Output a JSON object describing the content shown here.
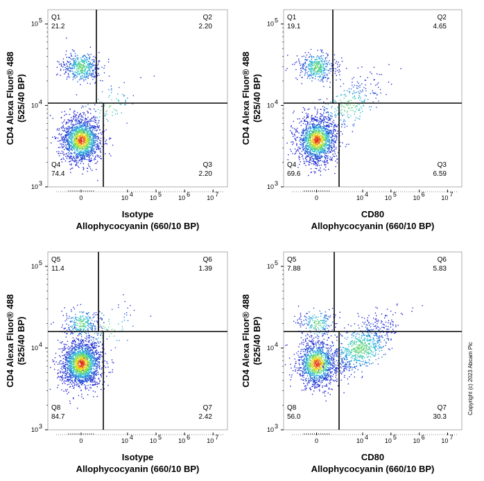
{
  "copyright": "Copyright (c) 2023 Abcam Plc",
  "colors": {
    "density_low": "#1f1fd0",
    "density_mid": "#30d0c0",
    "density_high": "#f0e020",
    "density_peak": "#e02010",
    "gate": "#000000"
  },
  "chart_data": [
    {
      "type": "scatter",
      "title": "",
      "xlabel_line1": "Isotype",
      "xlabel_line2": "Allophycocyanin (660/10 BP)",
      "ylabel_line1": "CD4 Alexa Fluor® 488",
      "ylabel_line2": "(525/40 BP)",
      "x_scale": "biexponential",
      "y_scale": "log",
      "ylim": [
        1000,
        150000
      ],
      "x_ticks": [
        {
          "base": "0",
          "exp": ""
        },
        {
          "base": "10",
          "exp": "4"
        },
        {
          "base": "10",
          "exp": "5"
        },
        {
          "base": "10",
          "exp": "6"
        },
        {
          "base": "10",
          "exp": "7"
        }
      ],
      "y_ticks": [
        {
          "base": "10",
          "exp": "3"
        },
        {
          "base": "10",
          "exp": "4"
        },
        {
          "base": "10",
          "exp": "5"
        }
      ],
      "quadrants": [
        {
          "name": "Q1",
          "value": "21.2"
        },
        {
          "name": "Q2",
          "value": "2.20"
        },
        {
          "name": "Q3",
          "value": "2.20"
        },
        {
          "name": "Q4",
          "value": "74.4"
        }
      ],
      "populations": [
        {
          "x": 0,
          "y": 30000,
          "fraction": 0.21
        },
        {
          "x": 0,
          "y": 3800,
          "fraction": 0.72
        },
        {
          "x": 2000,
          "y": 10000,
          "fraction": 0.04
        }
      ]
    },
    {
      "type": "scatter",
      "title": "",
      "xlabel_line1": "CD80",
      "xlabel_line2": "Allophycocyanin (660/10 BP)",
      "ylabel_line1": "CD4 Alexa Fluor® 488",
      "ylabel_line2": "(525/40 BP)",
      "x_scale": "biexponential",
      "y_scale": "log",
      "ylim": [
        1000,
        150000
      ],
      "x_ticks": [
        {
          "base": "0",
          "exp": ""
        },
        {
          "base": "10",
          "exp": "4"
        },
        {
          "base": "10",
          "exp": "5"
        },
        {
          "base": "10",
          "exp": "6"
        },
        {
          "base": "10",
          "exp": "7"
        }
      ],
      "y_ticks": [
        {
          "base": "10",
          "exp": "3"
        },
        {
          "base": "10",
          "exp": "4"
        },
        {
          "base": "10",
          "exp": "5"
        }
      ],
      "quadrants": [
        {
          "name": "Q1",
          "value": "19.1"
        },
        {
          "name": "Q2",
          "value": "4.65"
        },
        {
          "name": "Q3",
          "value": "6.59"
        },
        {
          "name": "Q4",
          "value": "69.6"
        }
      ],
      "populations": [
        {
          "x": 0,
          "y": 30000,
          "fraction": 0.19
        },
        {
          "x": 0,
          "y": 3800,
          "fraction": 0.68
        },
        {
          "x": 3000,
          "y": 10000,
          "fraction": 0.13
        }
      ]
    },
    {
      "type": "scatter",
      "title": "",
      "xlabel_line1": "Isotype",
      "xlabel_line2": "Allophycocyanin (660/10 BP)",
      "ylabel_line1": "CD4 Alexa Fluor® 488",
      "ylabel_line2": "(525/40 BP)",
      "x_scale": "biexponential",
      "y_scale": "log",
      "ylim": [
        1000,
        150000
      ],
      "x_ticks": [
        {
          "base": "0",
          "exp": ""
        },
        {
          "base": "10",
          "exp": "4"
        },
        {
          "base": "10",
          "exp": "5"
        },
        {
          "base": "10",
          "exp": "6"
        },
        {
          "base": "10",
          "exp": "7"
        }
      ],
      "y_ticks": [
        {
          "base": "10",
          "exp": "3"
        },
        {
          "base": "10",
          "exp": "4"
        },
        {
          "base": "10",
          "exp": "5"
        }
      ],
      "quadrants": [
        {
          "name": "Q5",
          "value": "11.4"
        },
        {
          "name": "Q6",
          "value": "1.39"
        },
        {
          "name": "Q7",
          "value": "2.42"
        },
        {
          "name": "Q8",
          "value": "84.7"
        }
      ],
      "populations": [
        {
          "x": 0,
          "y": 20000,
          "fraction": 0.12
        },
        {
          "x": 0,
          "y": 6500,
          "fraction": 0.84
        },
        {
          "x": 2000,
          "y": 17000,
          "fraction": 0.04
        }
      ]
    },
    {
      "type": "scatter",
      "title": "",
      "xlabel_line1": "CD80",
      "xlabel_line2": "Allophycocyanin (660/10 BP)",
      "ylabel_line1": "CD4 Alexa Fluor® 488",
      "ylabel_line2": "(525/40 BP)",
      "x_scale": "biexponential",
      "y_scale": "log",
      "ylim": [
        1000,
        150000
      ],
      "x_ticks": [
        {
          "base": "0",
          "exp": ""
        },
        {
          "base": "10",
          "exp": "4"
        },
        {
          "base": "10",
          "exp": "5"
        },
        {
          "base": "10",
          "exp": "6"
        },
        {
          "base": "10",
          "exp": "7"
        }
      ],
      "y_ticks": [
        {
          "base": "10",
          "exp": "3"
        },
        {
          "base": "10",
          "exp": "4"
        },
        {
          "base": "10",
          "exp": "5"
        }
      ],
      "quadrants": [
        {
          "name": "Q5",
          "value": "7.88"
        },
        {
          "name": "Q6",
          "value": "5.83"
        },
        {
          "name": "Q7",
          "value": "30.3"
        },
        {
          "name": "Q8",
          "value": "56.0"
        }
      ],
      "populations": [
        {
          "x": 0,
          "y": 20000,
          "fraction": 0.09
        },
        {
          "x": 0,
          "y": 6500,
          "fraction": 0.55
        },
        {
          "x": 8000,
          "y": 10000,
          "fraction": 0.36
        }
      ]
    }
  ]
}
